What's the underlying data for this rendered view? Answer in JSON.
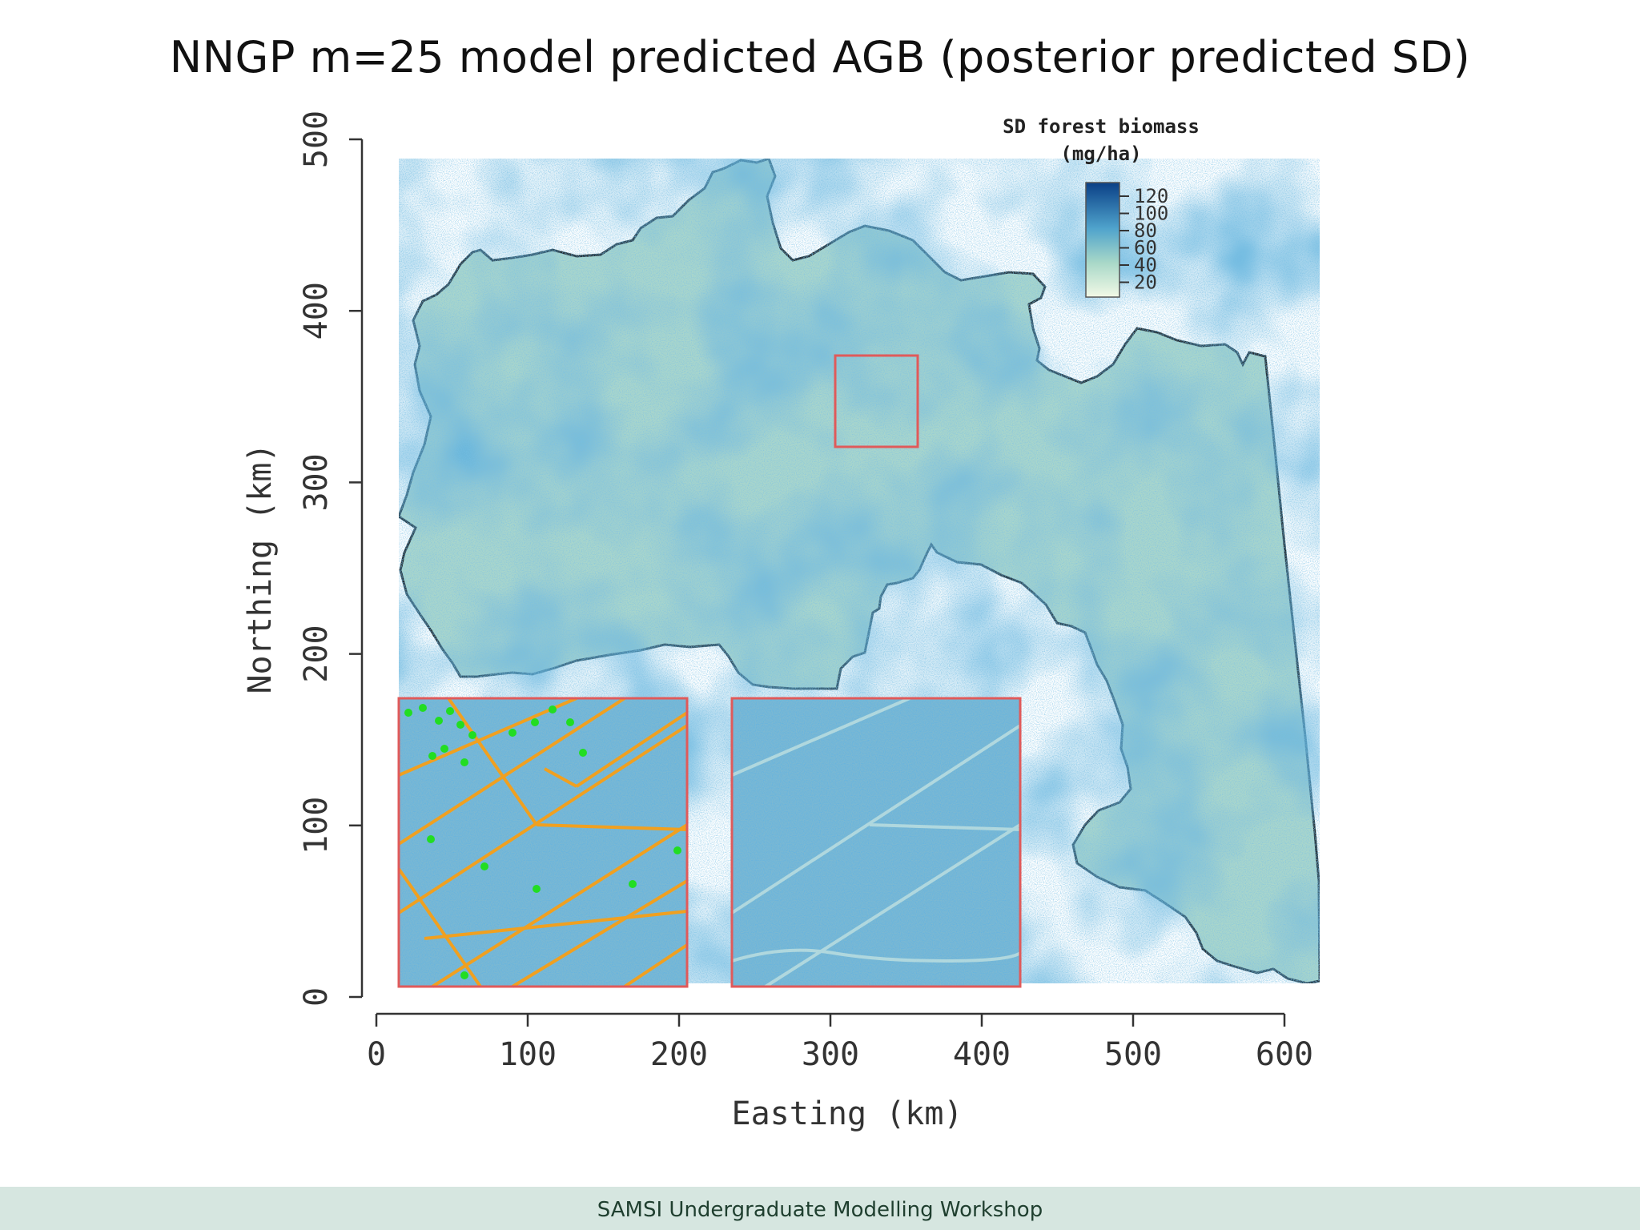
{
  "slide": {
    "title": "NNGP m=25 model predicted AGB (posterior predicted SD)",
    "footer": "SAMSI Undergraduate Modelling Workshop"
  },
  "map": {
    "x_axis": {
      "label": "Easting (km)",
      "ticks": [
        0,
        100,
        200,
        300,
        400,
        500,
        600
      ],
      "range": [
        0,
        600
      ]
    },
    "y_axis": {
      "label": "Northing (km)",
      "ticks": [
        0,
        100,
        200,
        300,
        400,
        500
      ],
      "range": [
        0,
        500
      ]
    },
    "legend": {
      "title_line1": "SD forest biomass",
      "title_line2": "(mg/ha)",
      "ticks": [
        120,
        100,
        80,
        60,
        40,
        20
      ]
    },
    "colors": {
      "low": "#e8f4d8",
      "mid": "#6fb3cf",
      "high": "#0b4f8f",
      "border": "#222222",
      "inset_frame": "#e05a5a",
      "tracks": "#f0a020",
      "plots": "#22dd22"
    }
  }
}
